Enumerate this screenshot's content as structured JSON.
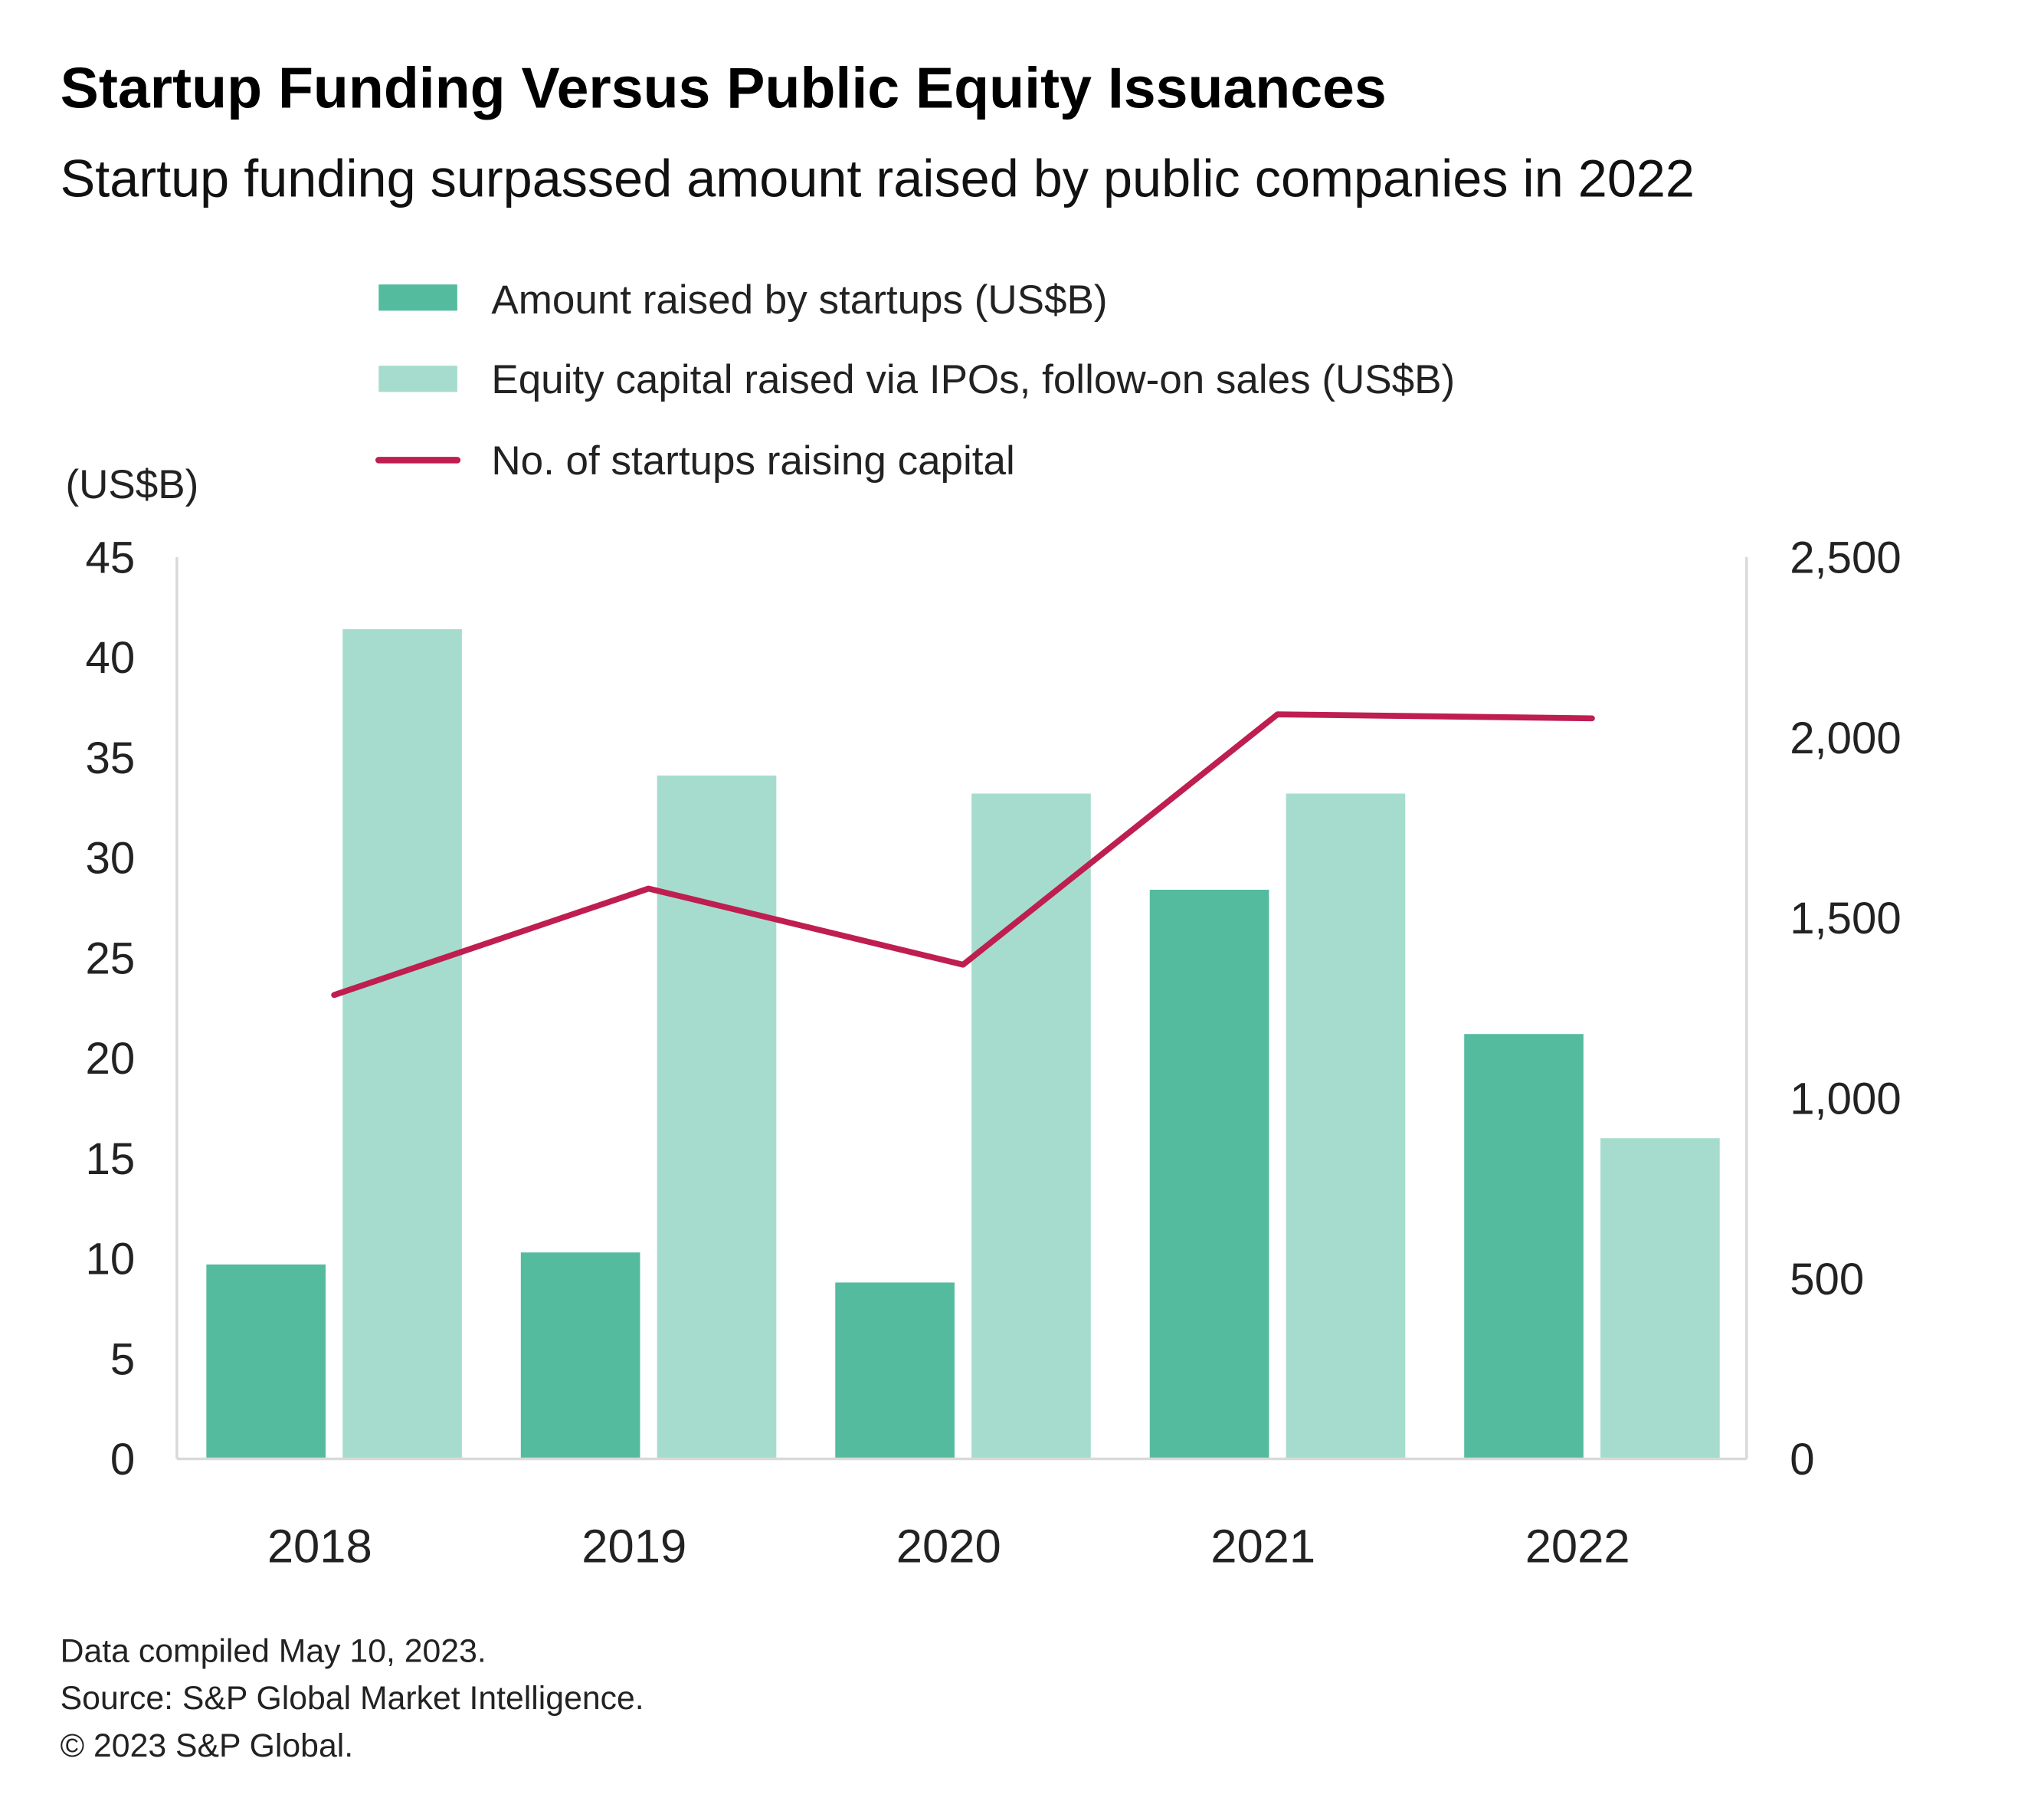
{
  "chart_data": {
    "type": "bar",
    "title": "Startup Funding Versus Public Equity Issuances",
    "subtitle": "Startup funding surpassed amount raised by public companies in 2022",
    "ylabel": "(US$B)",
    "categories": [
      "2018",
      "2019",
      "2020",
      "2021",
      "2022"
    ],
    "series": [
      {
        "name": "Amount raised by startups (US$B)",
        "type": "bar",
        "axis": "left",
        "color": "#55bb9e",
        "values": [
          9.7,
          10.3,
          8.8,
          28.4,
          21.2
        ]
      },
      {
        "name": "Equity capital raised via IPOs, follow-on sales (US$B)",
        "type": "bar",
        "axis": "left",
        "color": "#a6dccd",
        "values": [
          41.4,
          34.1,
          33.2,
          33.2,
          16.0
        ]
      },
      {
        "name": "No. of startups raising capital",
        "type": "line",
        "axis": "right",
        "color": "#bf1e50",
        "values": [
          1286,
          1581,
          1370,
          2064,
          2053
        ]
      }
    ],
    "ylim": [
      0,
      45
    ],
    "y_ticks": [
      "0",
      "5",
      "10",
      "15",
      "20",
      "25",
      "30",
      "35",
      "40",
      "45"
    ],
    "y2lim": [
      0,
      2500
    ],
    "y2_ticks": [
      "0",
      "500",
      "1,000",
      "1,500",
      "2,000",
      "2,500"
    ],
    "grid": false,
    "legend_placement": "top"
  },
  "footer": {
    "line1": "Data compiled May 10, 2023.",
    "line2": "Source: S&P Global Market Intelligence.",
    "line3": "© 2023 S&P Global."
  }
}
